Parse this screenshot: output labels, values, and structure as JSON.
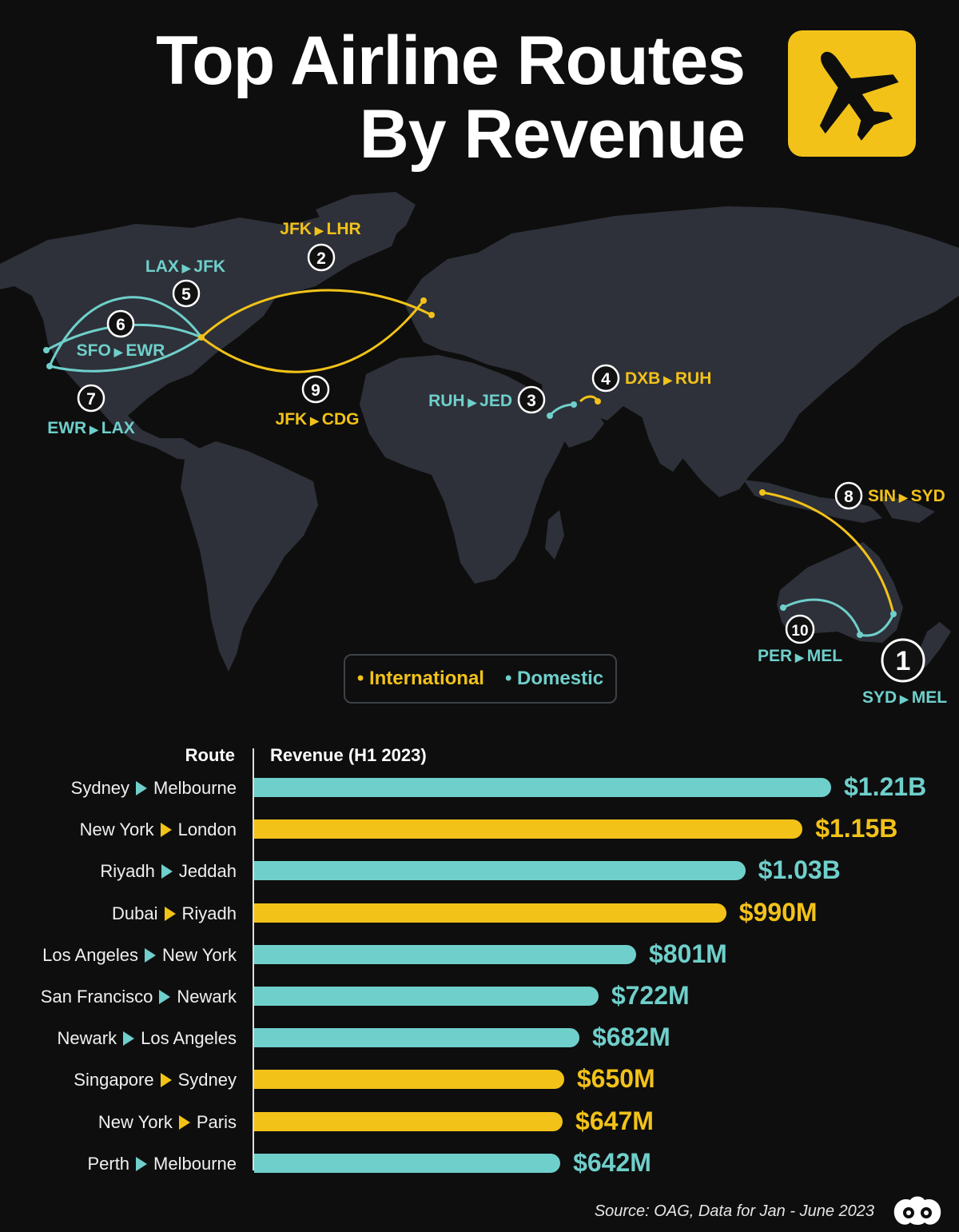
{
  "title": {
    "line1": "Top Airline Routes",
    "line2": "By Revenue"
  },
  "icons": {
    "header": "airplane-icon",
    "corner": "logo-icon"
  },
  "colors": {
    "international": "#f2c219",
    "domestic": "#6fcfcb",
    "land": "#2e3139",
    "background": "#0e0e0e"
  },
  "map": {
    "routes": [
      {
        "rank": "1",
        "from": "SYD",
        "to": "MEL",
        "type": "domestic"
      },
      {
        "rank": "2",
        "from": "JFK",
        "to": "LHR",
        "type": "international"
      },
      {
        "rank": "3",
        "from": "RUH",
        "to": "JED",
        "type": "domestic"
      },
      {
        "rank": "4",
        "from": "DXB",
        "to": "RUH",
        "type": "international"
      },
      {
        "rank": "5",
        "from": "LAX",
        "to": "JFK",
        "type": "domestic"
      },
      {
        "rank": "6",
        "from": "SFO",
        "to": "EWR",
        "type": "domestic"
      },
      {
        "rank": "7",
        "from": "EWR",
        "to": "LAX",
        "type": "domestic"
      },
      {
        "rank": "8",
        "from": "SIN",
        "to": "SYD",
        "type": "international"
      },
      {
        "rank": "9",
        "from": "JFK",
        "to": "CDG",
        "type": "international"
      },
      {
        "rank": "10",
        "from": "PER",
        "to": "MEL",
        "type": "domestic"
      }
    ]
  },
  "legend": {
    "international": "• International",
    "domestic": "• Domestic"
  },
  "chart_data": {
    "type": "bar",
    "orientation": "horizontal",
    "xlabel": "Revenue (H1 2023)",
    "ylabel": "Route",
    "xlim": [
      0,
      1.21
    ],
    "unit": "billion USD",
    "rows": [
      {
        "from": "Sydney",
        "to": "Melbourne",
        "value": 1.21,
        "label": "$1.21B",
        "type": "domestic"
      },
      {
        "from": "New York",
        "to": "London",
        "value": 1.15,
        "label": "$1.15B",
        "type": "international"
      },
      {
        "from": "Riyadh",
        "to": "Jeddah",
        "value": 1.03,
        "label": "$1.03B",
        "type": "domestic"
      },
      {
        "from": "Dubai",
        "to": "Riyadh",
        "value": 0.99,
        "label": "$990M",
        "type": "international"
      },
      {
        "from": "Los Angeles",
        "to": "New York",
        "value": 0.801,
        "label": "$801M",
        "type": "domestic"
      },
      {
        "from": "San Francisco",
        "to": "Newark",
        "value": 0.722,
        "label": "$722M",
        "type": "domestic"
      },
      {
        "from": "Newark",
        "to": "Los Angeles",
        "value": 0.682,
        "label": "$682M",
        "type": "domestic"
      },
      {
        "from": "Singapore",
        "to": "Sydney",
        "value": 0.65,
        "label": "$650M",
        "type": "international"
      },
      {
        "from": "New York",
        "to": "Paris",
        "value": 0.647,
        "label": "$647M",
        "type": "international"
      },
      {
        "from": "Perth",
        "to": "Melbourne",
        "value": 0.642,
        "label": "$642M",
        "type": "domestic"
      }
    ]
  },
  "headers": {
    "route": "Route",
    "revenue": "Revenue (H1 2023)"
  },
  "source": "Source: OAG, Data for Jan - June 2023"
}
